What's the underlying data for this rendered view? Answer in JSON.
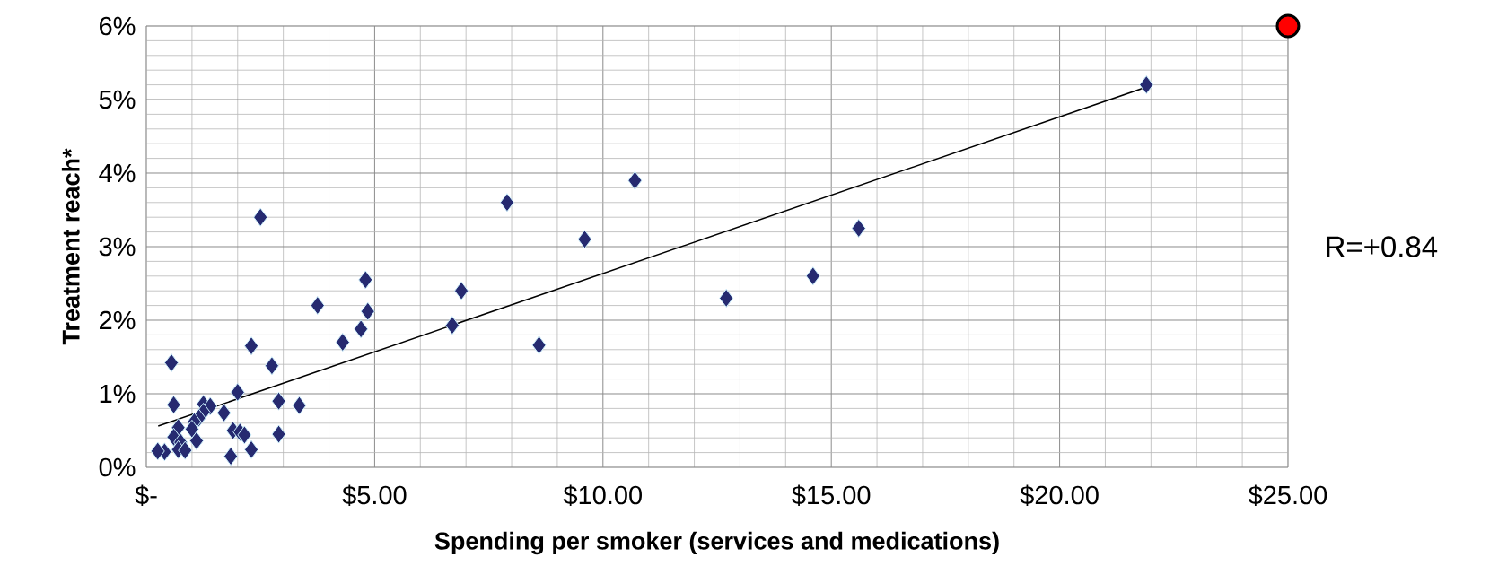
{
  "chart_data": {
    "type": "scatter",
    "xlabel": "Spending per smoker (services and medications)",
    "ylabel": "Treatment reach*",
    "xlim": [
      0,
      25
    ],
    "ylim": [
      0,
      6
    ],
    "xticks": [
      {
        "value": 0,
        "label": "$-"
      },
      {
        "value": 5,
        "label": "$5.00"
      },
      {
        "value": 10,
        "label": "$10.00"
      },
      {
        "value": 15,
        "label": "$15.00"
      },
      {
        "value": 20,
        "label": "$20.00"
      },
      {
        "value": 25,
        "label": "$25.00"
      }
    ],
    "yticks": [
      {
        "value": 0,
        "label": "0%"
      },
      {
        "value": 1,
        "label": "1%"
      },
      {
        "value": 2,
        "label": "2%"
      },
      {
        "value": 3,
        "label": "3%"
      },
      {
        "value": 4,
        "label": "4%"
      },
      {
        "value": 5,
        "label": "5%"
      },
      {
        "value": 6,
        "label": "6%"
      }
    ],
    "grid": true,
    "annotations": [
      "R=+0.84"
    ],
    "series": [
      {
        "color": "#262a70",
        "marker": "diamond",
        "x": [
          21.9,
          10.7,
          7.9,
          9.6,
          15.6,
          14.6,
          12.7,
          2.5,
          6.9,
          4.8,
          3.75,
          4.85,
          4.7,
          4.3,
          6.7,
          8.6,
          2.3,
          0.55,
          2.75,
          0.6,
          1.25,
          1.4,
          1.25,
          1.15,
          1.05,
          1.7,
          2.0,
          2.9,
          3.35,
          2.9,
          2.3,
          1.85,
          1.9,
          2.05,
          2.15,
          0.7,
          1.0,
          1.1,
          0.6,
          0.75,
          0.7,
          0.85,
          0.4,
          0.25
        ],
        "values": [
          5.2,
          3.9,
          3.6,
          3.1,
          3.25,
          2.6,
          2.3,
          3.4,
          2.4,
          2.55,
          2.2,
          2.12,
          1.88,
          1.7,
          1.93,
          1.66,
          1.65,
          1.42,
          1.38,
          0.85,
          0.86,
          0.83,
          0.75,
          0.67,
          0.62,
          0.74,
          1.02,
          0.9,
          0.84,
          0.45,
          0.24,
          0.15,
          0.5,
          0.48,
          0.44,
          0.54,
          0.52,
          0.36,
          0.41,
          0.34,
          0.24,
          0.23,
          0.21,
          0.22
        ]
      },
      {
        "type": "line",
        "color": "#000000",
        "marker": "none",
        "x": [
          0.26,
          21.9
        ],
        "values": [
          0.56,
          5.17
        ]
      },
      {
        "color": "#ff0000",
        "marker": "circle",
        "x": [
          25
        ],
        "values": [
          6
        ]
      }
    ]
  }
}
